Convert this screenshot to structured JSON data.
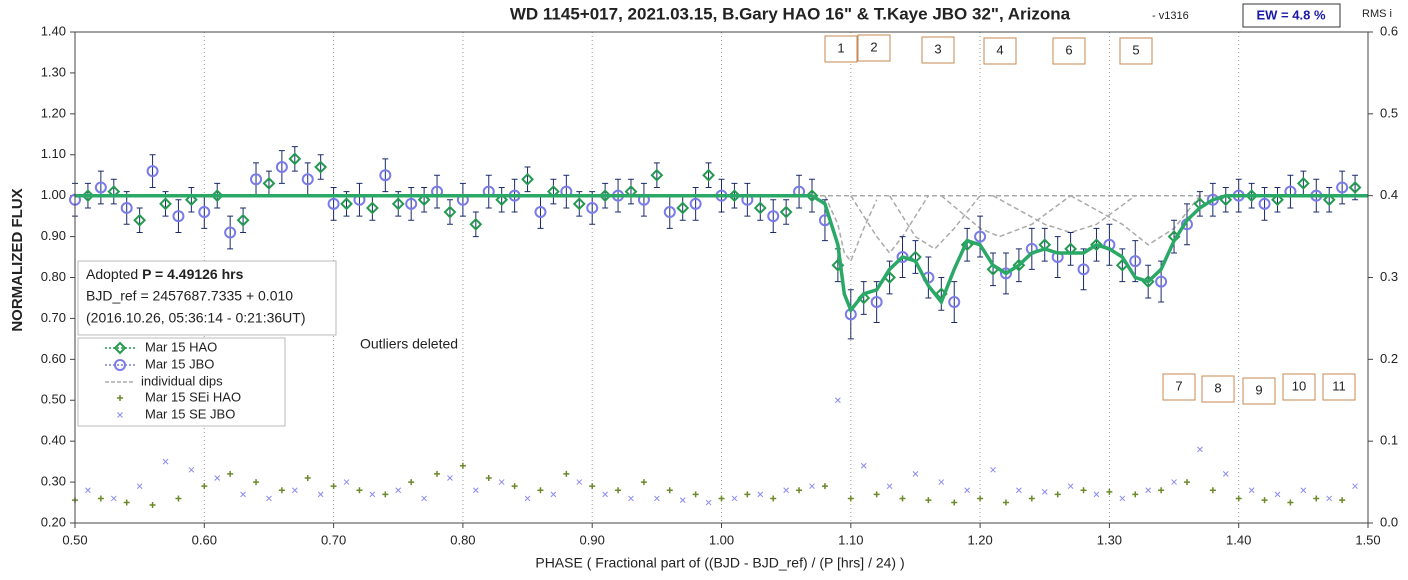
{
  "chart_data": {
    "type": "scatter",
    "title": "WD 1145+017, 2021.03.15, B.Gary HAO 16\" & T.Kaye JBO 32\", Arizona",
    "version": "- v1316",
    "ew_label": "EW = 4.8 %",
    "y2_label": "RMS i",
    "x_label": "PHASE ( Fractional part of ((BJD - BJD_ref) / (P [hrs] / 24) )",
    "y_label": "NORMALIZED FLUX",
    "period_label": "Adopted",
    "period_value": "P = 4.49126 hrs",
    "bjd_ref": "BJD_ref = 2457687.7335 + 0.010",
    "bjd_date": "(2016.10.26, 05:36:14 - 0:21:36UT)",
    "note": "Outliers deleted",
    "dip_labels": [
      "1",
      "2",
      "3",
      "4",
      "6",
      "5",
      "7",
      "8",
      "9",
      "10",
      "11"
    ],
    "xlim": [
      0.5,
      1.5
    ],
    "ylim": [
      0.2,
      1.4
    ],
    "y2lim": [
      0,
      0.6
    ],
    "grid": "x",
    "xticks": [
      {
        "value": 0.5,
        "label": "0.50"
      },
      {
        "value": 0.6,
        "label": "0.60"
      },
      {
        "value": 0.7,
        "label": "0.70"
      },
      {
        "value": 0.8,
        "label": "0.80"
      },
      {
        "value": 0.9,
        "label": "0.90"
      },
      {
        "value": 1.0,
        "label": "1.00"
      },
      {
        "value": 1.1,
        "label": "1.10"
      },
      {
        "value": 1.2,
        "label": "1.20"
      },
      {
        "value": 1.3,
        "label": "1.30"
      },
      {
        "value": 1.4,
        "label": "1.40"
      },
      {
        "value": 1.5,
        "label": "1.50"
      }
    ],
    "yticks": [
      {
        "value": 0.2,
        "label": "0.20"
      },
      {
        "value": 0.3,
        "label": "0.30"
      },
      {
        "value": 0.4,
        "label": "0.40"
      },
      {
        "value": 0.5,
        "label": "0.50"
      },
      {
        "value": 0.6,
        "label": "0.60"
      },
      {
        "value": 0.7,
        "label": "0.70"
      },
      {
        "value": 0.8,
        "label": "0.80"
      },
      {
        "value": 0.9,
        "label": "0.90"
      },
      {
        "value": 1.0,
        "label": "1.00"
      },
      {
        "value": 1.1,
        "label": "1.10"
      },
      {
        "value": 1.2,
        "label": "1.20"
      },
      {
        "value": 1.3,
        "label": "1.30"
      },
      {
        "value": 1.4,
        "label": "1.40"
      }
    ],
    "y2ticks": [
      {
        "value": 0,
        "label": "0.0"
      },
      {
        "value": 0.1,
        "label": "0.1"
      },
      {
        "value": 0.2,
        "label": "0.2"
      },
      {
        "value": 0.3,
        "label": "0.3"
      },
      {
        "value": 0.4,
        "label": "0.4"
      },
      {
        "value": 0.5,
        "label": "0.5"
      },
      {
        "value": 0.6,
        "label": "0.6"
      }
    ],
    "series": [
      {
        "name": "Mar 15 HAO",
        "color": "#239a4f",
        "marker": "diamond",
        "x": [
          0.51,
          0.53,
          0.55,
          0.57,
          0.59,
          0.61,
          0.63,
          0.65,
          0.67,
          0.69,
          0.71,
          0.73,
          0.75,
          0.77,
          0.79,
          0.81,
          0.83,
          0.85,
          0.87,
          0.89,
          0.91,
          0.93,
          0.95,
          0.97,
          0.99,
          1.01,
          1.03,
          1.05,
          1.07,
          1.09,
          1.11,
          1.13,
          1.15,
          1.17,
          1.19,
          1.21,
          1.23,
          1.25,
          1.27,
          1.29,
          1.31,
          1.33,
          1.35,
          1.37,
          1.39,
          1.41,
          1.43,
          1.45,
          1.47,
          1.49
        ],
        "values": [
          1.0,
          1.01,
          0.94,
          0.98,
          0.99,
          1.0,
          0.94,
          1.03,
          1.09,
          1.07,
          0.98,
          0.97,
          0.98,
          0.99,
          0.96,
          0.93,
          0.99,
          1.04,
          1.01,
          0.98,
          1.0,
          1.01,
          1.05,
          0.97,
          1.05,
          1.0,
          0.97,
          0.96,
          1.0,
          0.83,
          0.75,
          0.8,
          0.85,
          0.76,
          0.88,
          0.82,
          0.83,
          0.88,
          0.87,
          0.88,
          0.83,
          0.79,
          0.9,
          0.98,
          0.99,
          1.0,
          0.99,
          1.03,
          0.99,
          1.02
        ],
        "errors": [
          0.03,
          0.03,
          0.03,
          0.03,
          0.03,
          0.03,
          0.03,
          0.03,
          0.03,
          0.03,
          0.03,
          0.03,
          0.03,
          0.03,
          0.03,
          0.03,
          0.03,
          0.03,
          0.03,
          0.03,
          0.03,
          0.03,
          0.03,
          0.03,
          0.03,
          0.03,
          0.03,
          0.03,
          0.04,
          0.04,
          0.04,
          0.04,
          0.04,
          0.04,
          0.04,
          0.04,
          0.04,
          0.04,
          0.04,
          0.04,
          0.04,
          0.04,
          0.04,
          0.03,
          0.03,
          0.03,
          0.03,
          0.03,
          0.03,
          0.03
        ]
      },
      {
        "name": "Mar 15 JBO",
        "color": "#7a7ae8",
        "marker": "circle",
        "x": [
          0.5,
          0.52,
          0.54,
          0.56,
          0.58,
          0.6,
          0.62,
          0.64,
          0.66,
          0.68,
          0.7,
          0.72,
          0.74,
          0.76,
          0.78,
          0.8,
          0.82,
          0.84,
          0.86,
          0.88,
          0.9,
          0.92,
          0.94,
          0.96,
          0.98,
          1.0,
          1.02,
          1.04,
          1.06,
          1.08,
          1.1,
          1.12,
          1.14,
          1.16,
          1.18,
          1.2,
          1.22,
          1.24,
          1.26,
          1.28,
          1.3,
          1.32,
          1.34,
          1.36,
          1.38,
          1.4,
          1.42,
          1.44,
          1.46,
          1.48
        ],
        "values": [
          0.99,
          1.02,
          0.97,
          1.06,
          0.95,
          0.96,
          0.91,
          1.04,
          1.07,
          1.04,
          0.98,
          0.99,
          1.05,
          0.98,
          1.01,
          0.99,
          1.01,
          1.0,
          0.96,
          1.01,
          0.97,
          1.0,
          0.99,
          0.96,
          0.98,
          1.0,
          0.99,
          0.95,
          1.01,
          0.94,
          0.71,
          0.74,
          0.85,
          0.8,
          0.74,
          0.9,
          0.81,
          0.87,
          0.85,
          0.82,
          0.88,
          0.84,
          0.79,
          0.93,
          0.99,
          1.0,
          0.98,
          1.01,
          1.0,
          1.02
        ],
        "errors": [
          0.04,
          0.04,
          0.04,
          0.04,
          0.04,
          0.04,
          0.04,
          0.04,
          0.04,
          0.04,
          0.04,
          0.04,
          0.04,
          0.04,
          0.04,
          0.04,
          0.04,
          0.04,
          0.04,
          0.04,
          0.04,
          0.04,
          0.04,
          0.04,
          0.04,
          0.04,
          0.04,
          0.04,
          0.04,
          0.05,
          0.06,
          0.05,
          0.05,
          0.05,
          0.05,
          0.05,
          0.05,
          0.05,
          0.05,
          0.05,
          0.05,
          0.05,
          0.05,
          0.05,
          0.04,
          0.04,
          0.04,
          0.04,
          0.04,
          0.04
        ]
      },
      {
        "name": "Mar 15 SEi HAO",
        "color": "#6b8a2a",
        "marker": "plus",
        "axis": "y2",
        "x": [
          0.5,
          0.52,
          0.54,
          0.56,
          0.58,
          0.6,
          0.62,
          0.64,
          0.66,
          0.68,
          0.7,
          0.72,
          0.74,
          0.76,
          0.78,
          0.8,
          0.82,
          0.84,
          0.86,
          0.88,
          0.9,
          0.92,
          0.94,
          0.96,
          0.98,
          1.0,
          1.02,
          1.04,
          1.06,
          1.08,
          1.1,
          1.12,
          1.14,
          1.16,
          1.18,
          1.2,
          1.22,
          1.24,
          1.26,
          1.28,
          1.3,
          1.32,
          1.34,
          1.36,
          1.38,
          1.4,
          1.42,
          1.44,
          1.46,
          1.48
        ],
        "values": [
          0.028,
          0.03,
          0.025,
          0.022,
          0.03,
          0.045,
          0.06,
          0.05,
          0.04,
          0.055,
          0.045,
          0.04,
          0.035,
          0.05,
          0.06,
          0.07,
          0.055,
          0.045,
          0.04,
          0.06,
          0.045,
          0.04,
          0.05,
          0.04,
          0.035,
          0.03,
          0.035,
          0.03,
          0.04,
          0.045,
          0.03,
          0.035,
          0.03,
          0.028,
          0.025,
          0.03,
          0.025,
          0.03,
          0.035,
          0.04,
          0.038,
          0.035,
          0.04,
          0.05,
          0.04,
          0.03,
          0.028,
          0.025,
          0.03,
          0.028
        ]
      },
      {
        "name": "Mar 15 SE JBO",
        "color": "#8a8af0",
        "marker": "cross",
        "axis": "y2",
        "x": [
          0.51,
          0.53,
          0.55,
          0.57,
          0.59,
          0.61,
          0.63,
          0.65,
          0.67,
          0.69,
          0.71,
          0.73,
          0.75,
          0.77,
          0.79,
          0.81,
          0.83,
          0.85,
          0.87,
          0.89,
          0.91,
          0.93,
          0.95,
          0.97,
          0.99,
          1.01,
          1.03,
          1.05,
          1.07,
          1.09,
          1.11,
          1.13,
          1.15,
          1.17,
          1.19,
          1.21,
          1.23,
          1.25,
          1.27,
          1.29,
          1.31,
          1.33,
          1.35,
          1.37,
          1.39,
          1.41,
          1.43,
          1.45,
          1.47,
          1.49
        ],
        "values": [
          0.04,
          0.03,
          0.045,
          0.075,
          0.065,
          0.055,
          0.035,
          0.03,
          0.04,
          0.035,
          0.05,
          0.035,
          0.04,
          0.03,
          0.055,
          0.04,
          0.05,
          0.03,
          0.035,
          0.05,
          0.035,
          0.03,
          0.03,
          0.028,
          0.025,
          0.03,
          0.035,
          0.04,
          0.045,
          0.15,
          0.07,
          0.045,
          0.06,
          0.05,
          0.04,
          0.065,
          0.04,
          0.038,
          0.045,
          0.035,
          0.03,
          0.04,
          0.05,
          0.09,
          0.06,
          0.04,
          0.035,
          0.04,
          0.03,
          0.045
        ]
      }
    ],
    "model": {
      "color": "#2aa866",
      "x": [
        0.5,
        1.07,
        1.08,
        1.09,
        1.095,
        1.1,
        1.11,
        1.12,
        1.13,
        1.14,
        1.15,
        1.16,
        1.17,
        1.18,
        1.19,
        1.2,
        1.21,
        1.22,
        1.23,
        1.24,
        1.25,
        1.26,
        1.27,
        1.28,
        1.29,
        1.3,
        1.31,
        1.32,
        1.33,
        1.34,
        1.35,
        1.36,
        1.37,
        1.38,
        1.39,
        1.5
      ],
      "values": [
        1.0,
        1.0,
        0.98,
        0.88,
        0.76,
        0.72,
        0.76,
        0.77,
        0.82,
        0.85,
        0.84,
        0.78,
        0.74,
        0.82,
        0.89,
        0.88,
        0.83,
        0.81,
        0.83,
        0.86,
        0.87,
        0.86,
        0.86,
        0.86,
        0.88,
        0.87,
        0.85,
        0.8,
        0.79,
        0.82,
        0.89,
        0.94,
        0.97,
        0.99,
        1.0,
        1.0
      ]
    },
    "dips": {
      "name": "individual dips",
      "color": "#aaaaaa",
      "curves": [
        {
          "x": [
            1.07,
            1.5
          ],
          "values": [
            1.0,
            1.0
          ]
        },
        {
          "x": [
            1.08,
            1.09,
            1.095,
            1.1,
            1.11,
            1.12
          ],
          "values": [
            1.0,
            0.93,
            0.86,
            0.84,
            0.92,
            0.99
          ]
        },
        {
          "x": [
            1.1,
            1.12,
            1.13,
            1.14,
            1.16
          ],
          "values": [
            1.0,
            0.9,
            0.86,
            0.9,
            1.0
          ]
        },
        {
          "x": [
            1.13,
            1.15,
            1.165,
            1.18,
            1.2
          ],
          "values": [
            1.0,
            0.9,
            0.87,
            0.92,
            1.0
          ]
        },
        {
          "x": [
            1.17,
            1.2,
            1.215,
            1.24,
            1.27
          ],
          "values": [
            1.0,
            0.92,
            0.9,
            0.93,
            1.0
          ]
        },
        {
          "x": [
            1.21,
            1.25,
            1.27,
            1.29,
            1.32
          ],
          "values": [
            1.0,
            0.93,
            0.91,
            0.93,
            1.0
          ]
        },
        {
          "x": [
            1.27,
            1.31,
            1.33,
            1.35,
            1.37
          ],
          "values": [
            1.0,
            0.93,
            0.88,
            0.92,
            1.0
          ]
        }
      ]
    }
  }
}
